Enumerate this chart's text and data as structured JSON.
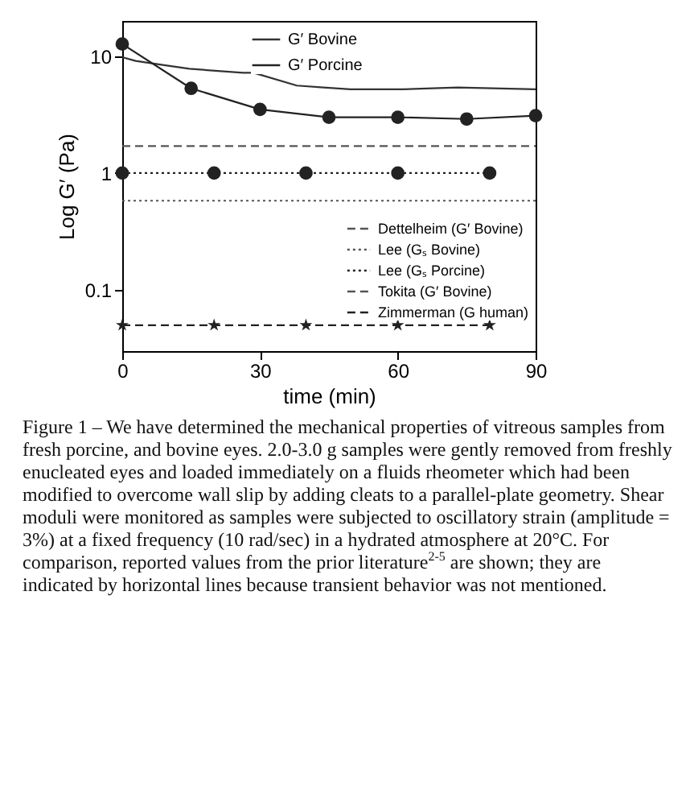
{
  "chart_data": {
    "type": "line",
    "xlabel": "time (min)",
    "ylabel": "Log G′ (Pa)",
    "xlim": [
      0,
      90
    ],
    "xticks": [
      0,
      30,
      60,
      90
    ],
    "ylim": [
      0.03,
      20
    ],
    "yticks": [
      0.1,
      1,
      10
    ],
    "log": "y",
    "grid": false,
    "legend": "top right",
    "series": [
      {
        "name": "G′ Bovine",
        "color": "#333333",
        "line_style": "solid",
        "marker": "none",
        "x": [
          0,
          2.9,
          8.8,
          14.6,
          26.3,
          28.6,
          38,
          43.8,
          49.7,
          61,
          73,
          90
        ],
        "values": [
          9.8,
          9.1,
          8.4,
          7.8,
          7.2,
          7.2,
          5.6,
          5.4,
          5.2,
          5.2,
          5.4,
          5.2
        ]
      },
      {
        "name": "G′ Porcine",
        "color": "#222222",
        "line_style": "solid",
        "marker": "circle",
        "x": [
          0,
          15,
          30,
          45,
          60,
          75,
          90
        ],
        "values": [
          12.7,
          5.3,
          3.5,
          3.0,
          3.0,
          2.9,
          3.1
        ]
      },
      {
        "name": "Dettelheim (G′ Bovine)",
        "color": "#555555",
        "line_style": "dashed",
        "marker": "none",
        "x": [
          0,
          90
        ],
        "values": [
          1.7,
          1.7
        ]
      },
      {
        "name": "Lee (Gₛ Bovine)",
        "color": "#555555",
        "line_style": "dotted",
        "marker": "none",
        "x": [
          0,
          90
        ],
        "values": [
          0.58,
          0.58
        ]
      },
      {
        "name": "Lee (Gₛ Porcine)",
        "color": "#222222",
        "line_style": "dotted",
        "marker": "circle",
        "x": [
          0,
          20,
          40,
          60,
          80
        ],
        "values": [
          1,
          1,
          1,
          1,
          1
        ]
      },
      {
        "name": "Tokita (G′ Bovine)",
        "color": "#555555",
        "line_style": "dashed",
        "marker": "none"
      },
      {
        "name": "Zimmerman (G human)",
        "color": "#222222",
        "line_style": "dashed",
        "marker": "star",
        "x": [
          0,
          20,
          40,
          60,
          80
        ],
        "values": [
          0.05,
          0.05,
          0.05,
          0.05,
          0.05
        ]
      }
    ],
    "annotations": [
      "Figure 1 – We have determined the mechanical properties of vitreous samples from fresh porcine, and bovine eyes. 2.0-3.0 g samples were gently removed from freshly enucleated eyes and loaded immediately on a fluids rheometer which had been modified to overcome wall slip by adding cleats to a parallel-plate geometry. Shear moduli were monitored as samples were subjected to oscillatory strain (amplitude = 3%) at a fixed frequency (10 rad/sec) in a hydrated atmosphere at 20°C. For comparison, reported values from the prior literature$^{2-5}$ are shown; they are indicated by horizontal lines because transient behavior was not mentioned."
    ]
  }
}
